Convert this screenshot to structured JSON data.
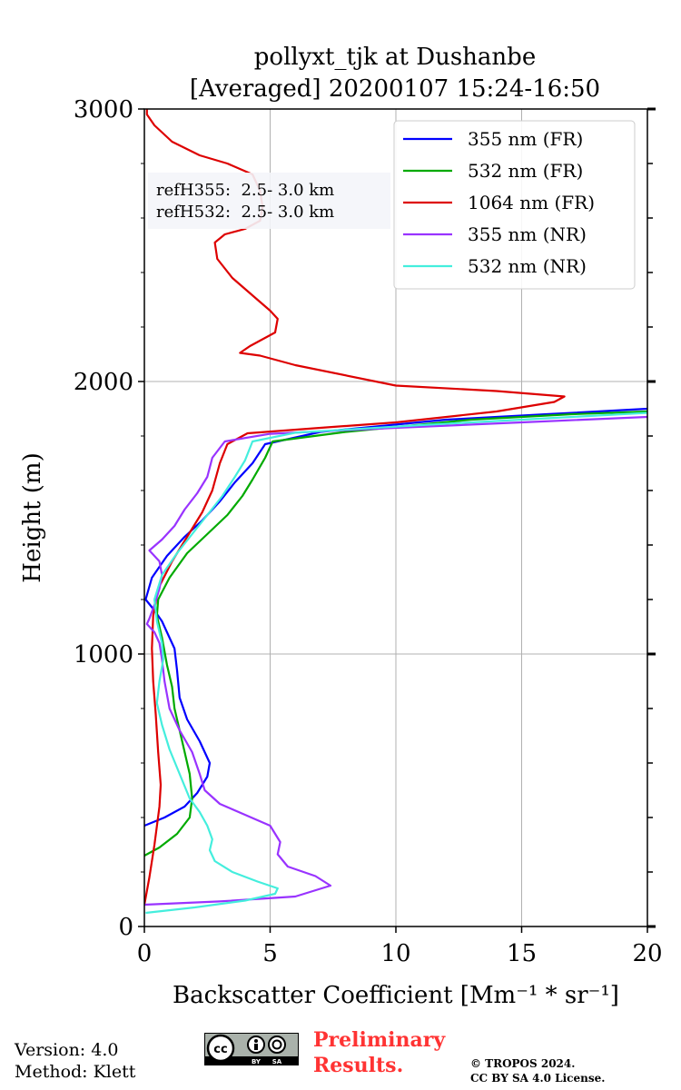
{
  "chart_data": {
    "type": "line",
    "title": [
      "pollyxt_tjk at Dushanbe",
      "[Averaged] 20200107 15:24-16:50"
    ],
    "xlabel": "Backscatter Coefficient [Mm⁻¹ * sr⁻¹]",
    "ylabel": "Height (m)",
    "xlim": [
      0,
      20
    ],
    "ylim": [
      0,
      3000
    ],
    "xticks": [
      0,
      5,
      10,
      15,
      20
    ],
    "xtick_labels": [
      "0",
      "5",
      "10",
      "15",
      "20"
    ],
    "yticks": [
      0,
      1000,
      2000,
      3000
    ],
    "ytick_labels": [
      "0",
      "1000",
      "2000",
      "3000"
    ],
    "yminor_step": 200,
    "grid": true,
    "legend_position": "top-right",
    "annotation": [
      "refH355:  2.5- 3.0 km",
      "refH532:  2.5- 3.0 km"
    ],
    "series": [
      {
        "name": "355 nm (FR)",
        "color": "#0000ff",
        "points": [
          [
            0,
            370
          ],
          [
            0.8,
            400
          ],
          [
            1.6,
            440
          ],
          [
            2.1,
            490
          ],
          [
            2.5,
            550
          ],
          [
            2.6,
            600
          ],
          [
            2.2,
            680
          ],
          [
            1.7,
            760
          ],
          [
            1.4,
            840
          ],
          [
            1.3,
            940
          ],
          [
            1.2,
            1020
          ],
          [
            0.9,
            1080
          ],
          [
            0.7,
            1120
          ],
          [
            0.4,
            1160
          ],
          [
            0.05,
            1200
          ],
          [
            0.3,
            1280
          ],
          [
            0.9,
            1360
          ],
          [
            1.6,
            1430
          ],
          [
            2.3,
            1490
          ],
          [
            3.0,
            1560
          ],
          [
            3.6,
            1630
          ],
          [
            4.3,
            1700
          ],
          [
            4.8,
            1770
          ],
          [
            7,
            1815
          ],
          [
            12,
            1860
          ],
          [
            16,
            1880
          ],
          [
            20,
            1900
          ]
        ]
      },
      {
        "name": "532 nm (FR)",
        "color": "#00aa00",
        "points": [
          [
            0,
            260
          ],
          [
            0.6,
            290
          ],
          [
            1.3,
            340
          ],
          [
            1.8,
            400
          ],
          [
            1.9,
            470
          ],
          [
            1.8,
            560
          ],
          [
            1.5,
            680
          ],
          [
            1.2,
            800
          ],
          [
            1.1,
            880
          ],
          [
            0.9,
            960
          ],
          [
            0.7,
            1060
          ],
          [
            0.5,
            1140
          ],
          [
            0.55,
            1200
          ],
          [
            1.0,
            1280
          ],
          [
            1.7,
            1370
          ],
          [
            2.5,
            1440
          ],
          [
            3.3,
            1510
          ],
          [
            3.9,
            1580
          ],
          [
            4.3,
            1640
          ],
          [
            4.8,
            1720
          ],
          [
            5.1,
            1780
          ],
          [
            8,
            1815
          ],
          [
            13,
            1860
          ],
          [
            17,
            1880
          ],
          [
            20,
            1890
          ]
        ]
      },
      {
        "name": "1064 nm (FR)",
        "color": "#dd0000",
        "points": [
          [
            0,
            80
          ],
          [
            0.2,
            180
          ],
          [
            0.4,
            300
          ],
          [
            0.6,
            440
          ],
          [
            0.65,
            520
          ],
          [
            0.55,
            640
          ],
          [
            0.45,
            780
          ],
          [
            0.35,
            900
          ],
          [
            0.3,
            1020
          ],
          [
            0.35,
            1140
          ],
          [
            0.55,
            1240
          ],
          [
            1.1,
            1340
          ],
          [
            1.7,
            1430
          ],
          [
            2.3,
            1520
          ],
          [
            2.7,
            1600
          ],
          [
            3.0,
            1700
          ],
          [
            3.3,
            1770
          ],
          [
            4.1,
            1810
          ],
          [
            7,
            1830
          ],
          [
            10,
            1850
          ],
          [
            14,
            1890
          ],
          [
            16.3,
            1925
          ],
          [
            16.7,
            1945
          ],
          [
            14,
            1965
          ],
          [
            10,
            1985
          ],
          [
            6,
            2060
          ],
          [
            4.6,
            2095
          ],
          [
            3.8,
            2105
          ],
          [
            4.2,
            2130
          ],
          [
            5.2,
            2180
          ],
          [
            5.3,
            2230
          ],
          [
            5.0,
            2260
          ],
          [
            4.5,
            2300
          ],
          [
            3.5,
            2380
          ],
          [
            2.9,
            2450
          ],
          [
            2.8,
            2510
          ],
          [
            3.2,
            2540
          ],
          [
            4.0,
            2560
          ],
          [
            4.6,
            2590
          ],
          [
            4.7,
            2640
          ],
          [
            4.6,
            2700
          ],
          [
            4.3,
            2760
          ],
          [
            3.3,
            2800
          ],
          [
            2.2,
            2830
          ],
          [
            1.1,
            2880
          ],
          [
            0.4,
            2940
          ],
          [
            0.1,
            2980
          ],
          [
            0.1,
            3000
          ]
        ]
      },
      {
        "name": "355 nm (NR)",
        "color": "#9933ff",
        "points": [
          [
            0,
            80
          ],
          [
            3,
            92
          ],
          [
            6,
            110
          ],
          [
            7.4,
            150
          ],
          [
            6.8,
            185
          ],
          [
            5.7,
            220
          ],
          [
            5.3,
            265
          ],
          [
            5.4,
            310
          ],
          [
            5.0,
            370
          ],
          [
            4.0,
            410
          ],
          [
            3.0,
            450
          ],
          [
            2.4,
            500
          ],
          [
            2.2,
            560
          ],
          [
            1.9,
            640
          ],
          [
            1.4,
            720
          ],
          [
            1.0,
            800
          ],
          [
            0.8,
            900
          ],
          [
            0.7,
            980
          ],
          [
            0.6,
            1040
          ],
          [
            0.4,
            1080
          ],
          [
            0.1,
            1110
          ],
          [
            0.2,
            1130
          ],
          [
            0.4,
            1180
          ],
          [
            0.6,
            1240
          ],
          [
            0.7,
            1290
          ],
          [
            0.6,
            1340
          ],
          [
            0.2,
            1380
          ],
          [
            0.7,
            1420
          ],
          [
            1.2,
            1470
          ],
          [
            1.6,
            1530
          ],
          [
            2.1,
            1590
          ],
          [
            2.5,
            1650
          ],
          [
            2.7,
            1720
          ],
          [
            3.2,
            1780
          ],
          [
            5,
            1808
          ],
          [
            10,
            1830
          ],
          [
            15,
            1850
          ],
          [
            20,
            1870
          ]
        ]
      },
      {
        "name": "532 nm (NR)",
        "color": "#44eedd",
        "points": [
          [
            0.05,
            50
          ],
          [
            2,
            70
          ],
          [
            4,
            95
          ],
          [
            5.2,
            120
          ],
          [
            5.3,
            140
          ],
          [
            4.5,
            165
          ],
          [
            3.5,
            200
          ],
          [
            2.8,
            240
          ],
          [
            2.6,
            280
          ],
          [
            2.7,
            320
          ],
          [
            2.5,
            370
          ],
          [
            2.2,
            420
          ],
          [
            1.8,
            470
          ],
          [
            1.4,
            560
          ],
          [
            1.0,
            650
          ],
          [
            0.7,
            740
          ],
          [
            0.5,
            820
          ],
          [
            0.6,
            900
          ],
          [
            0.75,
            980
          ],
          [
            0.7,
            1040
          ],
          [
            0.5,
            1120
          ],
          [
            0.4,
            1200
          ],
          [
            0.7,
            1290
          ],
          [
            1.3,
            1370
          ],
          [
            1.9,
            1440
          ],
          [
            2.5,
            1510
          ],
          [
            3.1,
            1580
          ],
          [
            3.6,
            1650
          ],
          [
            4.0,
            1710
          ],
          [
            4.3,
            1780
          ],
          [
            6,
            1812
          ],
          [
            11,
            1840
          ],
          [
            16,
            1865
          ],
          [
            20,
            1885
          ]
        ]
      }
    ]
  },
  "footer": {
    "version": "Version: 4.0",
    "method": "Method: Klett",
    "prelim_line1": "Preliminary",
    "prelim_line2": "Results.",
    "copy_line1": "© TROPOS 2024.",
    "copy_line2": "CC BY SA 4.0 License.",
    "cc": "cc",
    "by": "BY",
    "sa": "SA"
  }
}
